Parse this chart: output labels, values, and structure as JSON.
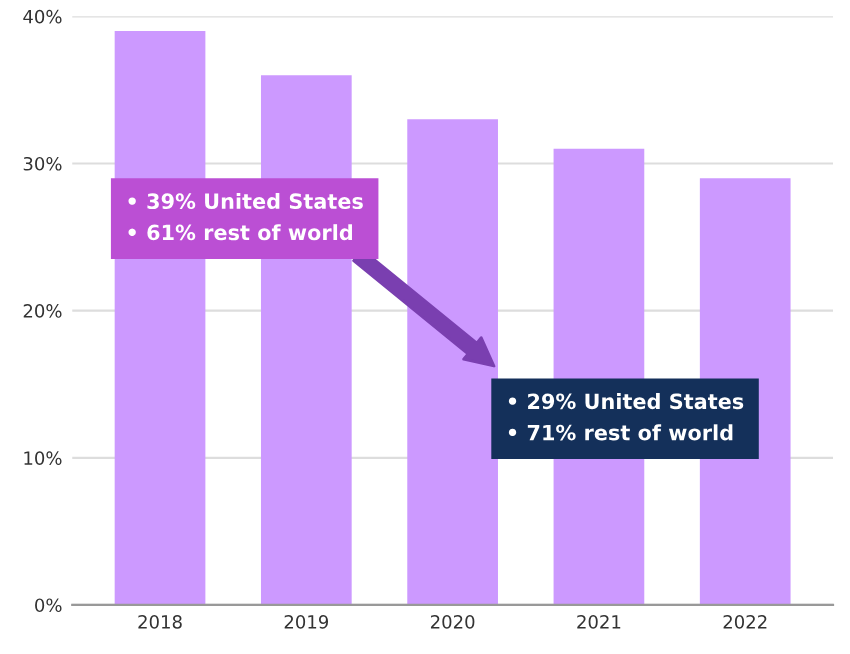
{
  "chart_data": {
    "type": "bar",
    "categories": [
      "2018",
      "2019",
      "2020",
      "2021",
      "2022"
    ],
    "values": [
      39,
      36,
      33,
      31,
      29
    ],
    "color": "#cc99ff",
    "ylim": [
      0,
      40
    ],
    "yticks": [
      {
        "value": 0,
        "label": "0%"
      },
      {
        "value": 10,
        "label": "10%"
      },
      {
        "value": 20,
        "label": "20%"
      },
      {
        "value": 30,
        "label": "30%"
      },
      {
        "value": 40,
        "label": "40%"
      }
    ],
    "grid": "y",
    "annotations": [
      "• 39% United States\n• 61% rest of world",
      "• 29% United States\n• 71% rest of world"
    ]
  }
}
